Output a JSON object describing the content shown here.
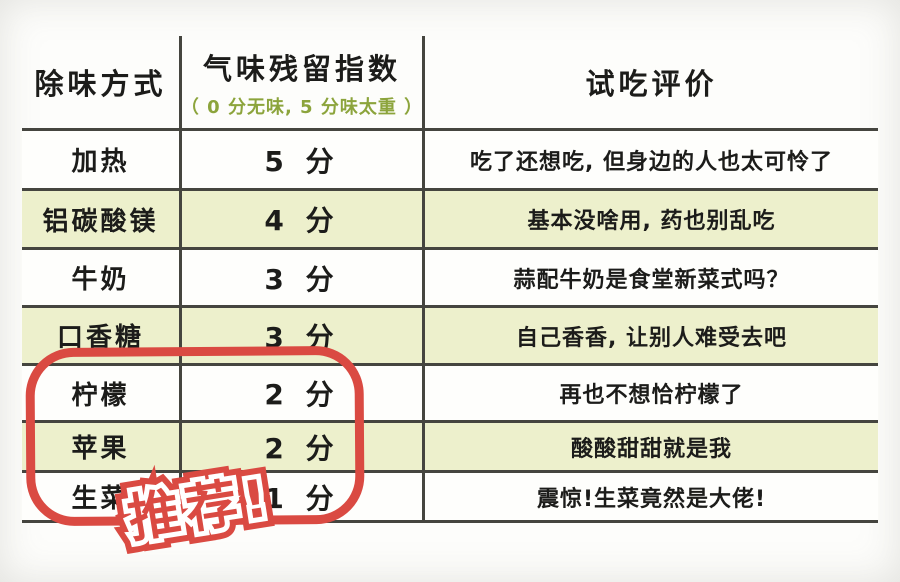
{
  "chart_data": {
    "type": "table",
    "columns": [
      "除味方式",
      "气味残留指数",
      "试吃评价"
    ],
    "score_scale_note": "（ 0 分无味, 5 分味太重 ）",
    "rows": [
      [
        "加热",
        "5 分",
        "吃了还想吃, 但身边的人也太可怜了"
      ],
      [
        "铝碳酸镁",
        "4 分",
        "基本没啥用, 药也别乱吃"
      ],
      [
        "牛奶",
        "3 分",
        "蒜配牛奶是食堂新菜式吗？"
      ],
      [
        "口香糖",
        "3 分",
        "自己香香, 让别人难受去吧"
      ],
      [
        "柠檬",
        "2 分",
        "再也不想恰柠檬了"
      ],
      [
        "苹果",
        "2 分",
        "酸酸甜甜就是我"
      ],
      [
        "生菜",
        "1 分",
        "震惊!生菜竟然是大佬!"
      ]
    ],
    "scores_numeric": [
      5,
      4,
      3,
      3,
      2,
      2,
      1
    ],
    "highlighted_rows": [
      "柠檬",
      "苹果",
      "生菜"
    ],
    "annotation": "推荐!",
    "layout_hints": {
      "grid": "horizontal lines every row, two inner vertical dividers, no outer border",
      "row_banding": "odd rows pale green, even rows white",
      "highlight": "red hand-drawn rounded rectangle around last three rows of first two columns"
    }
  },
  "colors": {
    "row_band": "#edf0cc",
    "grid_line": "#45453f",
    "note_green": "#8ca43c",
    "accent_red": "#da4a42",
    "text": "#1c1c1a"
  }
}
